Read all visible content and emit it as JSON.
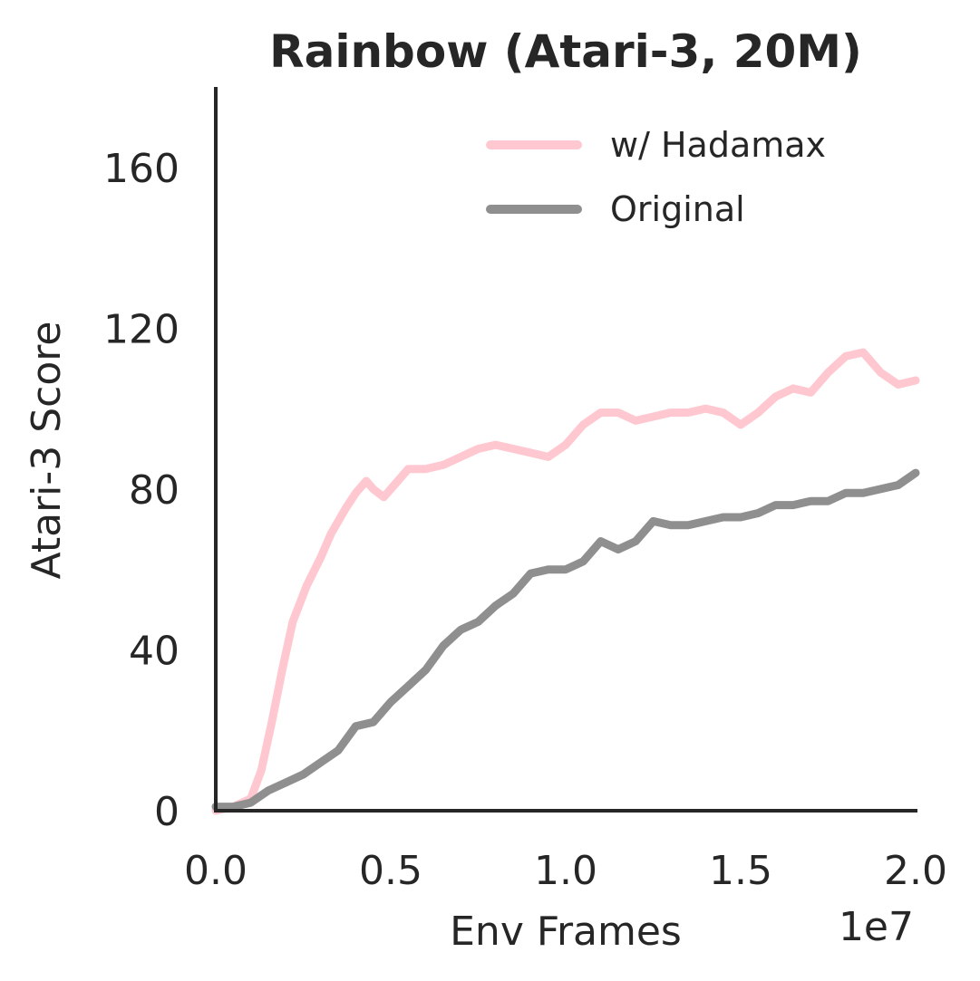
{
  "chart_data": {
    "type": "line",
    "title": "Rainbow (Atari-3, 20M)",
    "xlabel": "Env Frames",
    "ylabel": "Atari-3 Score",
    "x_offset_text": "1e7",
    "xlim": [
      0,
      20000000
    ],
    "ylim": [
      0,
      180
    ],
    "x_ticks": [
      0,
      5000000,
      10000000,
      15000000,
      20000000
    ],
    "x_tick_labels": [
      "0.0",
      "0.5",
      "1.0",
      "1.5",
      "2.0"
    ],
    "y_ticks": [
      0,
      40,
      80,
      120,
      160
    ],
    "y_tick_labels": [
      "0",
      "40",
      "80",
      "120",
      "160"
    ],
    "grid": false,
    "legend_position": "top-right",
    "series": [
      {
        "name": "w/ Hadamax",
        "color": "#ffc8d0",
        "x": [
          0,
          500000,
          1000000,
          1300000,
          1600000,
          1900000,
          2200000,
          2600000,
          3000000,
          3300000,
          3700000,
          4000000,
          4300000,
          4500000,
          4800000,
          5100000,
          5500000,
          6000000,
          6500000,
          7000000,
          7500000,
          8000000,
          8500000,
          9000000,
          9500000,
          10000000,
          10500000,
          11000000,
          11500000,
          12000000,
          12500000,
          13000000,
          13500000,
          14000000,
          14500000,
          15000000,
          15500000,
          16000000,
          16500000,
          17000000,
          17500000,
          18000000,
          18500000,
          19000000,
          19500000,
          20000000
        ],
        "y": [
          0,
          1,
          3,
          10,
          22,
          35,
          47,
          56,
          63,
          69,
          75,
          79,
          82,
          80,
          78,
          81,
          85,
          85,
          86,
          88,
          90,
          91,
          90,
          89,
          88,
          91,
          96,
          99,
          99,
          97,
          98,
          99,
          99,
          100,
          99,
          96,
          99,
          103,
          105,
          104,
          109,
          113,
          114,
          109,
          106,
          107
        ]
      },
      {
        "name": "Original",
        "color": "#8f8f8f",
        "x": [
          0,
          500000,
          1000000,
          1500000,
          2000000,
          2500000,
          3000000,
          3500000,
          4000000,
          4500000,
          5000000,
          5500000,
          6000000,
          6500000,
          7000000,
          7500000,
          8000000,
          8500000,
          9000000,
          9500000,
          10000000,
          10500000,
          11000000,
          11500000,
          12000000,
          12500000,
          13000000,
          13500000,
          14000000,
          14500000,
          15000000,
          15500000,
          16000000,
          16500000,
          17000000,
          17500000,
          18000000,
          18500000,
          19000000,
          19500000,
          20000000
        ],
        "y": [
          1,
          1,
          2,
          5,
          7,
          9,
          12,
          15,
          21,
          22,
          27,
          31,
          35,
          41,
          45,
          47,
          51,
          54,
          59,
          60,
          60,
          62,
          67,
          65,
          67,
          72,
          71,
          71,
          72,
          73,
          73,
          74,
          76,
          76,
          77,
          77,
          79,
          79,
          80,
          81,
          84
        ]
      }
    ]
  }
}
